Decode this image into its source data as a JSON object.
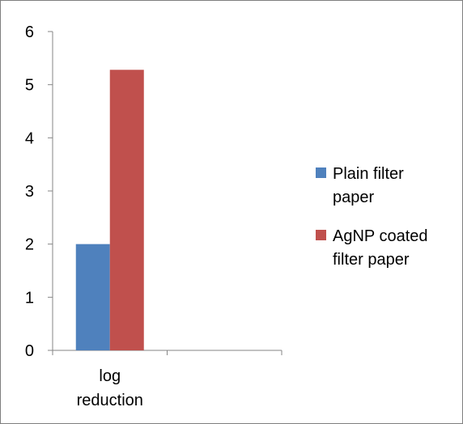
{
  "chart_data": {
    "type": "bar",
    "categories": [
      "log reduction",
      ""
    ],
    "category_label_lines": [
      [
        "log",
        "reduction"
      ],
      []
    ],
    "series": [
      {
        "name": "Plain filter paper",
        "legend_lines": [
          "Plain filter",
          "paper"
        ],
        "values": [
          2.0,
          null
        ],
        "color": "#4f81bd"
      },
      {
        "name": "AgNP coated filter paper",
        "legend_lines": [
          "AgNP coated",
          "filter paper"
        ],
        "values": [
          5.28,
          null
        ],
        "color": "#c0504d"
      }
    ],
    "yticks": [
      "0",
      "1",
      "2",
      "3",
      "4",
      "5",
      "6"
    ],
    "ylim": [
      0,
      6
    ],
    "title": "",
    "xlabel": "",
    "ylabel": "",
    "grid": false,
    "legend_position": "right"
  }
}
